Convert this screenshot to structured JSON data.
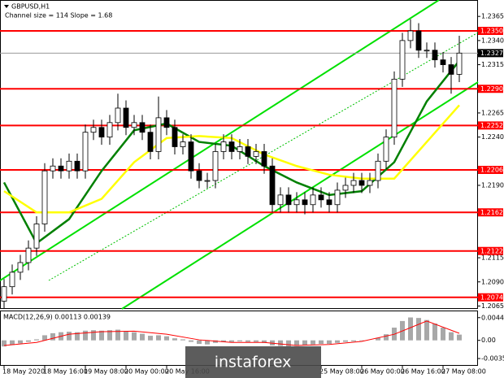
{
  "chart_data": {
    "type": "candlestick",
    "title": "GBPUSD,H1",
    "subtitle": "Channel size = 114 Slope = 1.68",
    "watermark": "instaforex",
    "categories": [
      "18 May 2020",
      null,
      null,
      null,
      null,
      "18 May 16:00",
      null,
      null,
      null,
      null,
      "19 May 08:00",
      null,
      null,
      null,
      null,
      "20 May 00:00",
      null,
      null,
      null,
      null,
      "20 May 16:00",
      null,
      null,
      null,
      null,
      null,
      null,
      null,
      null,
      null,
      null,
      null,
      null,
      null,
      null,
      null,
      null,
      null,
      null,
      "25 May 08:00",
      null,
      null,
      null,
      null,
      "26 May 00:00",
      null,
      null,
      null,
      null,
      "26 May 16:00",
      null,
      null,
      null,
      null,
      "27 May 08:00",
      null,
      null
    ],
    "open": [
      1.207,
      1.2085,
      1.21,
      1.211,
      1.2125,
      1.215,
      1.2205,
      1.221,
      1.2205,
      1.2215,
      1.2205,
      1.2245,
      1.225,
      1.224,
      1.2255,
      1.227,
      1.225,
      1.2255,
      1.2245,
      1.2225,
      1.226,
      1.225,
      1.223,
      1.2235,
      1.2205,
      1.2195,
      1.2195,
      1.2225,
      1.2235,
      1.2225,
      1.223,
      1.222,
      1.2225,
      1.221,
      1.217,
      1.218,
      1.217,
      1.2175,
      1.217,
      1.218,
      1.2175,
      1.217,
      1.2185,
      1.219,
      1.2195,
      1.219,
      1.2195,
      1.2215,
      1.224,
      1.23,
      1.234,
      1.235,
      1.233,
      1.233,
      1.232,
      1.2315,
      1.2305
    ],
    "high": [
      1.2093,
      1.2108,
      1.2118,
      1.2133,
      1.2158,
      1.2213,
      1.2218,
      1.2218,
      1.2223,
      1.2223,
      1.2253,
      1.2258,
      1.2258,
      1.2263,
      1.2285,
      1.2278,
      1.2263,
      1.2263,
      1.2253,
      1.2282,
      1.2268,
      1.2258,
      1.2243,
      1.2243,
      1.2213,
      1.2203,
      1.2233,
      1.2243,
      1.2243,
      1.2238,
      1.2238,
      1.2233,
      1.2233,
      1.2218,
      1.2188,
      1.2188,
      1.2183,
      1.2183,
      1.2188,
      1.2188,
      1.2183,
      1.2193,
      1.2198,
      1.2203,
      1.2203,
      1.2203,
      1.2223,
      1.2248,
      1.2308,
      1.2348,
      1.2362,
      1.2358,
      1.2338,
      1.2338,
      1.2328,
      1.2323,
      1.2345
    ],
    "low": [
      1.2062,
      1.2077,
      1.2092,
      1.2102,
      1.2117,
      1.2142,
      1.2197,
      1.2197,
      1.2197,
      1.2197,
      1.2197,
      1.2237,
      1.2232,
      1.2232,
      1.2247,
      1.2242,
      1.2242,
      1.2237,
      1.2217,
      1.2217,
      1.2242,
      1.2222,
      1.2222,
      1.2197,
      1.2187,
      1.2187,
      1.2187,
      1.2217,
      1.2217,
      1.2217,
      1.2212,
      1.2212,
      1.2202,
      1.2162,
      1.2162,
      1.2162,
      1.2162,
      1.216,
      1.2162,
      1.2167,
      1.2162,
      1.2162,
      1.2177,
      1.2182,
      1.2182,
      1.2182,
      1.2187,
      1.2207,
      1.2232,
      1.2292,
      1.2332,
      1.2322,
      1.2322,
      1.2312,
      1.2307,
      1.2285,
      1.2297
    ],
    "close": [
      1.2085,
      1.21,
      1.211,
      1.2125,
      1.215,
      1.2205,
      1.221,
      1.2205,
      1.2215,
      1.2205,
      1.2245,
      1.225,
      1.224,
      1.2255,
      1.227,
      1.225,
      1.2255,
      1.2245,
      1.2225,
      1.226,
      1.225,
      1.223,
      1.2235,
      1.2205,
      1.2195,
      1.2195,
      1.2225,
      1.2235,
      1.2225,
      1.223,
      1.222,
      1.2225,
      1.221,
      1.217,
      1.218,
      1.217,
      1.2175,
      1.217,
      1.218,
      1.2175,
      1.217,
      1.2185,
      1.219,
      1.2195,
      1.219,
      1.2195,
      1.2215,
      1.224,
      1.23,
      1.234,
      1.235,
      1.233,
      1.233,
      1.232,
      1.2315,
      1.2305,
      1.2327
    ],
    "moving_averages": [
      {
        "color": "#008000",
        "x": [
          0,
          4,
          8,
          12,
          16,
          20,
          24,
          28,
          32,
          36,
          40,
          44,
          48,
          52,
          56
        ],
        "values": [
          1.2193,
          1.213,
          1.2155,
          1.2205,
          1.2247,
          1.2254,
          1.2235,
          1.2231,
          1.221,
          1.2193,
          1.218,
          1.2184,
          1.2214,
          1.2277,
          1.2319
        ]
      },
      {
        "color": "#ffff00",
        "x": [
          0,
          4,
          8,
          12,
          16,
          20,
          24,
          28,
          32,
          36,
          40,
          44,
          48,
          52,
          56
        ],
        "values": [
          1.2184,
          1.2162,
          1.2162,
          1.2176,
          1.2214,
          1.2239,
          1.2241,
          1.2239,
          1.2222,
          1.221,
          1.2201,
          1.2197,
          1.2197,
          1.2235,
          1.2273
        ]
      }
    ],
    "levels": [
      {
        "value": 1.235,
        "label": "1.2350"
      },
      {
        "value": 1.229,
        "label": "1.2290"
      },
      1.2252,
      1.2206,
      1.2162,
      1.2122,
      1.2074
    ],
    "current_price": 1.2327,
    "ylim": [
      1.2062,
      1.2382
    ],
    "yticks": [
      1.2365,
      {
        "value": 1.234,
        "label": "1.2340"
      },
      1.2315,
      1.2265,
      {
        "value": 1.224,
        "label": "1.2240"
      },
      {
        "value": 1.219,
        "label": "1.2190"
      },
      1.2115,
      {
        "value": 1.209,
        "label": "1.2090"
      },
      1.2065
    ],
    "macd": {
      "label": "MACD(12,26,9) 0.00113 0.00139",
      "histogram": [
        -0.0012,
        -0.0009,
        -0.0006,
        -0.0003,
        0.0002,
        0.001,
        0.0014,
        0.0016,
        0.0017,
        0.0016,
        0.0019,
        0.002,
        0.0019,
        0.002,
        0.0021,
        0.0018,
        0.0016,
        0.0013,
        0.0009,
        0.001,
        0.0008,
        0.0004,
        0.0002,
        -0.0003,
        -0.0007,
        -0.0008,
        -0.0005,
        -0.0003,
        -0.0003,
        -0.0002,
        -0.0003,
        -0.0003,
        -0.0005,
        -0.001,
        -0.0011,
        -0.0012,
        -0.0011,
        -0.001,
        -0.0008,
        -0.0007,
        -0.0007,
        -0.0005,
        -0.0003,
        -0.0002,
        -0.0001,
        0.0,
        0.0005,
        0.0012,
        0.0025,
        0.0038,
        0.0045,
        0.0044,
        0.004,
        0.0033,
        0.0025,
        0.0016,
        0.00113
      ],
      "signal_color": "#ff0000",
      "signal_x": [
        0,
        4,
        8,
        12,
        16,
        20,
        24,
        28,
        32,
        36,
        40,
        44,
        48,
        52,
        56
      ],
      "signal": [
        -0.001,
        -0.0004,
        0.0012,
        0.0017,
        0.0018,
        0.0012,
        0.0001,
        -0.0004,
        -0.0004,
        -0.001,
        -0.0008,
        -0.0002,
        0.0012,
        0.0038,
        0.00139
      ],
      "ylim": [
        -0.005,
        0.0057
      ],
      "yticks": [
        0.00446,
        {
          "value": 0,
          "label": "0.00"
        },
        -0.00357
      ]
    }
  }
}
